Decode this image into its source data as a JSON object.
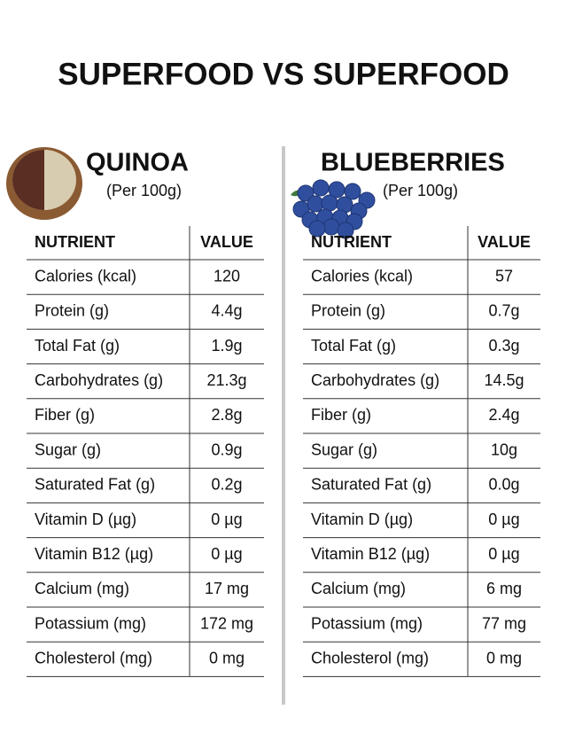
{
  "title": "SUPERFOOD VS SUPERFOOD",
  "panels": [
    {
      "name": "QUINOA",
      "subtitle": "(Per 100g)",
      "table": {
        "header": [
          "NUTRIENT",
          "VALUE"
        ],
        "rows": [
          [
            "Calories (kcal)",
            "120"
          ],
          [
            "Protein (g)",
            "4.4g"
          ],
          [
            "Total Fat (g)",
            "1.9g"
          ],
          [
            "Carbohydrates (g)",
            "21.3g"
          ],
          [
            "Fiber (g)",
            "2.8g"
          ],
          [
            "Sugar (g)",
            "0.9g"
          ],
          [
            "Saturated Fat (g)",
            "0.2g"
          ],
          [
            "Vitamin D (µg)",
            "0 µg"
          ],
          [
            "Vitamin B12 (µg)",
            "0 µg"
          ],
          [
            "Calcium (mg)",
            "17 mg"
          ],
          [
            "Potassium (mg)",
            "172 mg"
          ],
          [
            "Cholesterol (mg)",
            "0 mg"
          ]
        ]
      }
    },
    {
      "name": "BLUEBERRIES",
      "subtitle": "(Per 100g)",
      "table": {
        "header": [
          "NUTRIENT",
          "VALUE"
        ],
        "rows": [
          [
            "Calories (kcal)",
            "57"
          ],
          [
            "Protein (g)",
            "0.7g"
          ],
          [
            "Total Fat (g)",
            "0.3g"
          ],
          [
            "Carbohydrates (g)",
            "14.5g"
          ],
          [
            "Fiber (g)",
            "2.4g"
          ],
          [
            "Sugar (g)",
            "10g"
          ],
          [
            "Saturated Fat (g)",
            "0.0g"
          ],
          [
            "Vitamin D (µg)",
            "0 µg"
          ],
          [
            "Vitamin B12 (µg)",
            "0 µg"
          ],
          [
            "Calcium (mg)",
            "6 mg"
          ],
          [
            "Potassium (mg)",
            "77 mg"
          ],
          [
            "Cholesterol (mg)",
            "0 mg"
          ]
        ]
      }
    }
  ]
}
